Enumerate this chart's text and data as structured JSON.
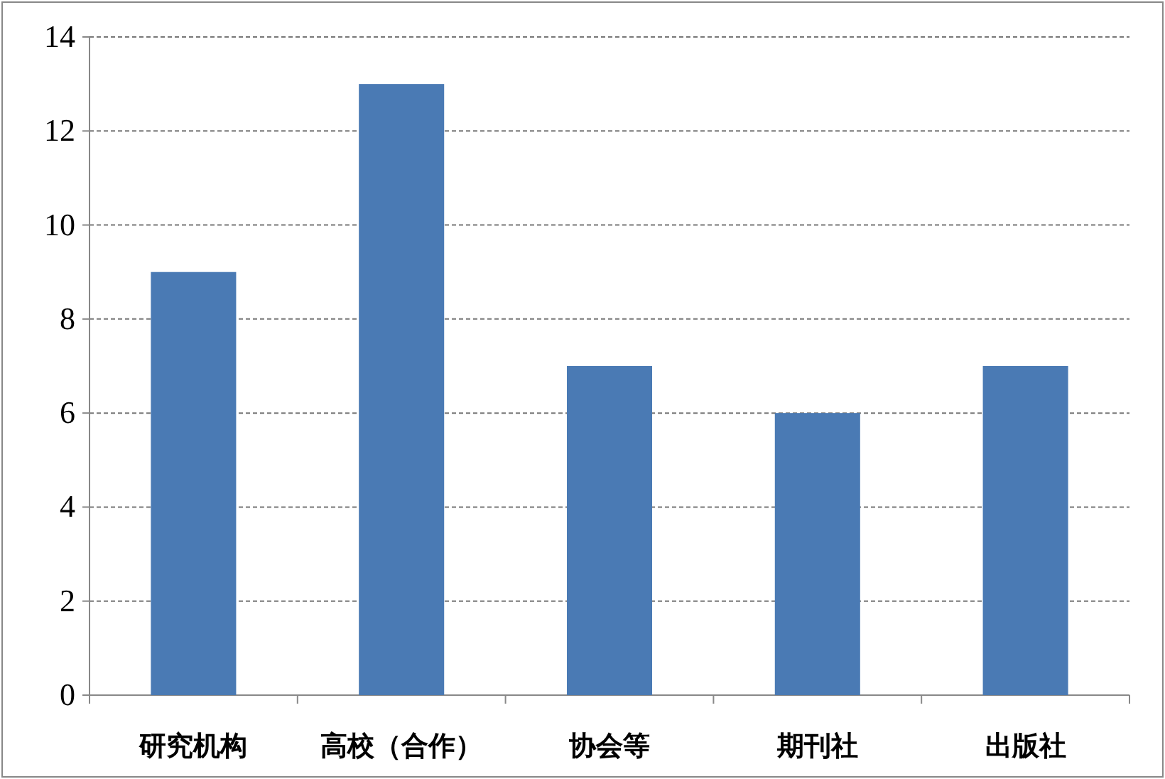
{
  "chart_data": {
    "type": "bar",
    "categories": [
      "研究机构",
      "高校（合作）",
      "协会等",
      "期刊社",
      "出版社"
    ],
    "values": [
      9,
      13,
      7,
      6,
      7
    ],
    "color": "#4a7ab4",
    "ylim": [
      0,
      14
    ],
    "yticks": [
      0,
      2,
      4,
      6,
      8,
      10,
      12,
      14
    ],
    "grid": "y"
  }
}
